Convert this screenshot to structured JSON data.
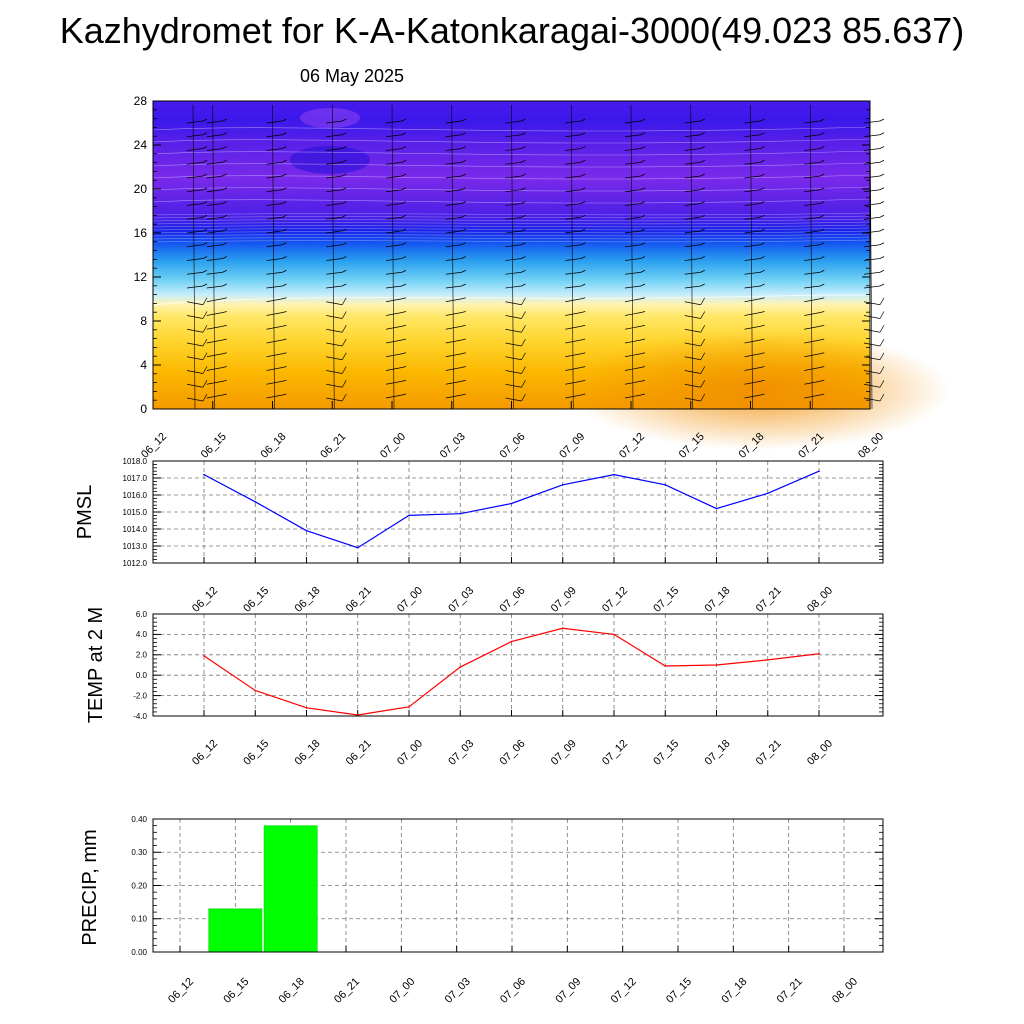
{
  "title": "Kazhydromet for K-A-Katonkaragai-3000(49.023 85.637)",
  "subtitle": "06 May 2025",
  "time_labels": [
    "06_12",
    "06_15",
    "06_18",
    "06_21",
    "07_00",
    "07_03",
    "07_06",
    "07_09",
    "07_12",
    "07_15",
    "07_18",
    "07_21",
    "08_00"
  ],
  "chart_data": [
    {
      "type": "heatmap",
      "title": "",
      "xlabel": "",
      "ylabel": "",
      "x": [
        "06_12",
        "06_15",
        "06_18",
        "06_21",
        "07_00",
        "07_03",
        "07_06",
        "07_09",
        "07_12",
        "07_15",
        "07_18",
        "07_21",
        "08_00"
      ],
      "yticks": [
        "0",
        "4",
        "8",
        "12",
        "16",
        "20",
        "24",
        "28"
      ],
      "ylim": [
        0,
        28
      ],
      "overlay": "wind barbs",
      "colors": {
        "warm_low": "#f5a000",
        "warm_mid": "#ffe040",
        "cool_mid": "#5fc8f0",
        "cold_high": "#2a10f0",
        "upper": "#7a28e8"
      },
      "grid": false
    },
    {
      "type": "line",
      "title": "",
      "ylabel": "PMSL",
      "x": [
        "06_12",
        "06_15",
        "06_18",
        "06_21",
        "07_00",
        "07_03",
        "07_06",
        "07_09",
        "07_12",
        "07_15",
        "07_18",
        "07_21",
        "08_00"
      ],
      "yticks": [
        "1012.0",
        "1013.0",
        "1014.0",
        "1015.0",
        "1016.0",
        "1017.0",
        "1018.0"
      ],
      "ylim": [
        1012.0,
        1018.0
      ],
      "series": [
        {
          "values": [
            1017.2,
            1015.6,
            1013.9,
            1012.9,
            1014.8,
            1014.9,
            1015.5,
            1016.6,
            1017.2,
            1016.6,
            1015.2,
            1016.1,
            1017.4
          ],
          "color": "#0000ff"
        }
      ],
      "grid": true
    },
    {
      "type": "line",
      "title": "",
      "ylabel": "TEMP at 2 M",
      "x": [
        "06_12",
        "06_15",
        "06_18",
        "06_21",
        "07_00",
        "07_03",
        "07_06",
        "07_09",
        "07_12",
        "07_15",
        "07_18",
        "07_21",
        "08_00"
      ],
      "yticks": [
        "-4.0",
        "-2.0",
        "0.0",
        "2.0",
        "4.0",
        "6.0"
      ],
      "ylim": [
        -4.0,
        6.0
      ],
      "series": [
        {
          "values": [
            1.9,
            -1.5,
            -3.2,
            -3.9,
            -3.1,
            0.8,
            3.3,
            4.6,
            4.0,
            0.9,
            1.0,
            1.5,
            2.1
          ],
          "color": "#ff0000"
        }
      ],
      "grid": true
    },
    {
      "type": "bar",
      "title": "",
      "ylabel": "PRECIP, mm",
      "categories": [
        "06_15",
        "06_18"
      ],
      "values": [
        0.13,
        0.38
      ],
      "x": [
        "06_12",
        "06_15",
        "06_18",
        "06_21",
        "07_00",
        "07_03",
        "07_06",
        "07_09",
        "07_12",
        "07_15",
        "07_18",
        "07_21",
        "08_00"
      ],
      "yticks": [
        "0.00",
        "0.10",
        "0.20",
        "0.30",
        "0.40"
      ],
      "ylim": [
        0.0,
        0.4
      ],
      "color": "#00ff00",
      "grid": true
    }
  ]
}
